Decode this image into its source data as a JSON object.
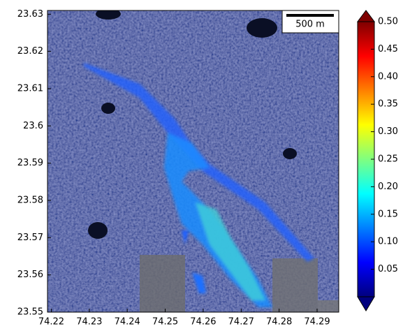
{
  "map": {
    "xlim": [
      74.219,
      74.2957
    ],
    "ylim": [
      23.55,
      23.631
    ],
    "xticks": [
      74.22,
      74.23,
      74.24,
      74.25,
      74.26,
      74.27,
      74.28,
      74.29
    ],
    "yticks": [
      23.55,
      23.56,
      23.57,
      23.58,
      23.59,
      23.6,
      23.61,
      23.62,
      23.63
    ],
    "scale_bar": "500 m",
    "colorbar": {
      "lim": [
        0,
        0.5
      ],
      "ticks": [
        0.05,
        {
          "value": 0.1,
          "label": "0.10"
        },
        0.15,
        {
          "value": 0.2,
          "label": "0.20"
        },
        0.25,
        {
          "value": 0.3,
          "label": "0.30"
        },
        0.35,
        {
          "value": 0.4,
          "label": "0.40"
        },
        0.45,
        {
          "value": 0.5,
          "label": "0.50"
        }
      ]
    }
  }
}
